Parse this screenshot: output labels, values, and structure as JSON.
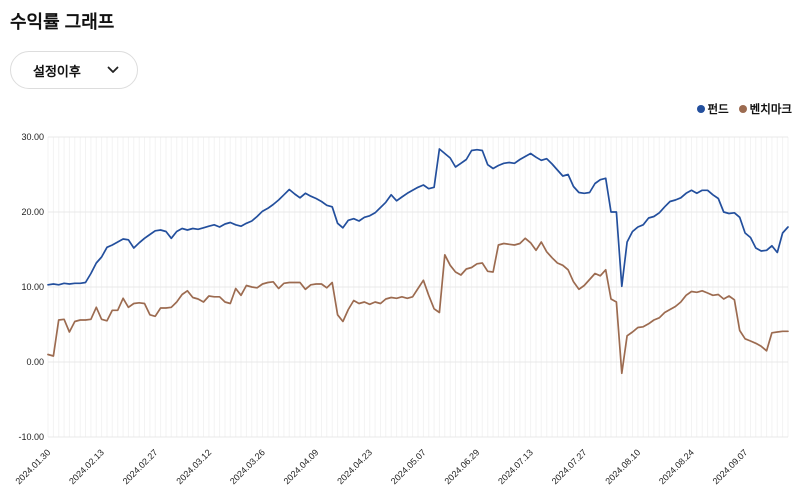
{
  "page": {
    "title": "수익률 그래프"
  },
  "period_dropdown": {
    "label": "설정이후",
    "icon": "chevron-down"
  },
  "chart_data": {
    "type": "line",
    "title": "수익률 그래프",
    "grid": true,
    "legend_position": "top-right",
    "ylim": [
      -10,
      30
    ],
    "y_ticks": [
      {
        "value": 30,
        "label": "30.00"
      },
      {
        "value": 20,
        "label": "20.00"
      },
      {
        "value": 10,
        "label": "10.00"
      },
      {
        "value": 0,
        "label": "0.00"
      },
      {
        "value": -10,
        "label": "-10.00"
      }
    ],
    "x_label_every": 10,
    "x_tick_labels": [
      "2024.01.30",
      "2024.02.13",
      "2024.02.27",
      "2024.03.12",
      "2024.03.26",
      "2024.04.09",
      "2024.04.23",
      "2024.05.07",
      "2024.06.29",
      "2024.07.13",
      "2024.07.27",
      "2024.08.10",
      "2024.08.24",
      "2024.09.07"
    ],
    "series": [
      {
        "name": "펀드",
        "color": "#234f9d",
        "values": [
          10.3,
          10.4,
          10.3,
          10.5,
          10.4,
          10.5,
          10.5,
          10.6,
          11.8,
          13.2,
          14.0,
          15.3,
          15.6,
          16.0,
          16.4,
          16.3,
          15.2,
          15.9,
          16.5,
          17.0,
          17.5,
          17.6,
          17.4,
          16.5,
          17.4,
          17.8,
          17.6,
          17.8,
          17.7,
          17.9,
          18.1,
          18.3,
          18.0,
          18.4,
          18.6,
          18.3,
          18.1,
          18.5,
          18.8,
          19.4,
          20.1,
          20.5,
          21.0,
          21.6,
          22.3,
          23.0,
          22.4,
          21.9,
          22.5,
          22.1,
          21.8,
          21.4,
          20.9,
          20.7,
          18.5,
          17.9,
          18.9,
          19.1,
          18.8,
          19.3,
          19.5,
          19.9,
          20.6,
          21.3,
          22.3,
          21.5,
          22.0,
          22.5,
          22.9,
          23.3,
          23.6,
          23.1,
          23.3,
          28.4,
          27.8,
          27.2,
          26.0,
          26.5,
          27.0,
          28.2,
          28.3,
          28.2,
          26.3,
          25.8,
          26.2,
          26.5,
          26.6,
          26.5,
          27.0,
          27.4,
          27.8,
          27.3,
          26.9,
          27.1,
          26.4,
          25.6,
          24.8,
          25.0,
          23.4,
          22.6,
          22.5,
          22.6,
          23.8,
          24.3,
          24.5,
          20.0,
          20.0,
          10.1,
          16.0,
          17.4,
          18.0,
          18.3,
          19.2,
          19.4,
          19.9,
          20.7,
          21.4,
          21.6,
          21.9,
          22.5,
          22.9,
          22.5,
          22.9,
          22.9,
          22.3,
          21.8,
          20.0,
          19.8,
          19.9,
          19.3,
          17.2,
          16.6,
          15.2,
          14.8,
          14.9,
          15.5,
          14.6,
          17.2,
          18.0
        ]
      },
      {
        "name": "벤치마크",
        "color": "#9c6b50",
        "values": [
          1.0,
          0.8,
          5.6,
          5.7,
          4.0,
          5.4,
          5.6,
          5.6,
          5.7,
          7.3,
          5.7,
          5.5,
          6.9,
          6.9,
          8.5,
          7.3,
          7.8,
          7.9,
          7.8,
          6.3,
          6.1,
          7.2,
          7.2,
          7.3,
          8.0,
          9.0,
          9.5,
          8.6,
          8.4,
          8.0,
          8.8,
          8.7,
          8.7,
          8.0,
          7.8,
          9.8,
          8.9,
          10.2,
          10.0,
          9.9,
          10.4,
          10.6,
          10.7,
          9.8,
          10.5,
          10.6,
          10.6,
          10.6,
          9.7,
          10.3,
          10.4,
          10.4,
          9.9,
          10.6,
          6.3,
          5.4,
          7.0,
          8.2,
          7.8,
          8.0,
          7.7,
          8.0,
          7.8,
          8.4,
          8.6,
          8.5,
          8.7,
          8.5,
          8.7,
          9.8,
          10.9,
          8.9,
          7.1,
          6.6,
          14.3,
          12.9,
          12.0,
          11.6,
          12.4,
          12.6,
          13.1,
          13.2,
          12.1,
          12.0,
          15.6,
          15.8,
          15.7,
          15.6,
          15.8,
          16.5,
          15.9,
          14.9,
          16.0,
          14.7,
          13.9,
          13.2,
          12.9,
          12.3,
          10.7,
          9.7,
          10.2,
          11.0,
          11.8,
          11.5,
          12.3,
          8.4,
          8.0,
          -1.5,
          3.5,
          4.0,
          4.6,
          4.7,
          5.1,
          5.6,
          5.9,
          6.6,
          7.0,
          7.4,
          8.0,
          8.9,
          9.4,
          9.3,
          9.5,
          9.2,
          8.9,
          9.0,
          8.4,
          8.8,
          8.3,
          4.2,
          3.1,
          2.8,
          2.5,
          2.1,
          1.5,
          3.9,
          4.0,
          4.1,
          4.1
        ]
      }
    ]
  }
}
